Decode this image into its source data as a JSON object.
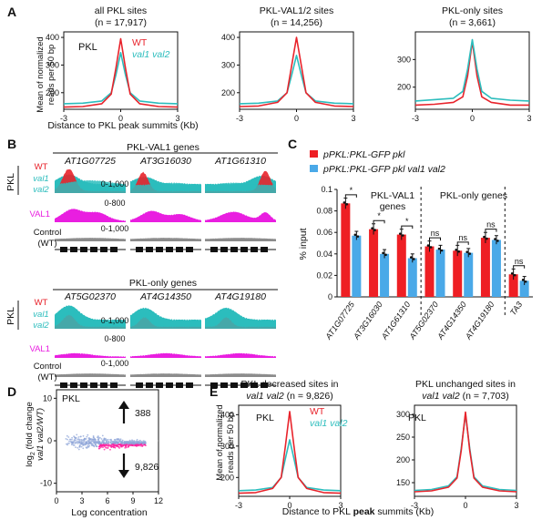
{
  "colors": {
    "wt": "#e8232b",
    "mut": "#2cbdbd",
    "val1": "#e91ee0",
    "ctrl": "#8c8c8c",
    "bar_red": "#ee1f24",
    "bar_blue": "#4aa9e8"
  },
  "panels": {
    "A": {
      "letter": "A",
      "xlabel": "Distance to PKL peak summits (Kb)",
      "ylabel_1": "Mean of normalized",
      "ylabel_2": "reads per 50 bp",
      "legend": {
        "protein": "PKL",
        "wt": "WT",
        "mut": "val1 val2"
      }
    },
    "B": {
      "letter": "B",
      "section1": "PKL-VAL1 genes",
      "section2": "PKL-only genes",
      "genes1": [
        "AT1G07725",
        "AT3G16030",
        "AT1G61310"
      ],
      "genes2": [
        "AT5G02370",
        "AT4G14350",
        "AT4G19180"
      ],
      "track_pkl": "PKL",
      "track_wt": "WT",
      "track_val1": "val1",
      "track_val2": "val2",
      "track_val1_prot": "VAL1",
      "track_control": "Control",
      "track_control_wt": "(WT)",
      "range_pkl": "0-1,000",
      "range_val1": "0-800",
      "range_ctrl": "0-1,000"
    },
    "C": {
      "letter": "C",
      "legend1": "pPKL:PKL-GFP pkl",
      "legend2": "pPKL:PKL-GFP pkl val1 val2",
      "group1": "PKL-VAL1",
      "group1b": "genes",
      "group2": "PKL-only genes",
      "ylabel": "% input",
      "sig": [
        "*",
        "*",
        "*",
        "ns",
        "ns",
        "ns",
        "ns"
      ]
    },
    "D": {
      "letter": "D",
      "protein": "PKL",
      "ylabel_1": "log",
      "ylabel_sub": "2",
      "ylabel_2": " (fold change",
      "ylabel_3": "val1 val2/WT)",
      "xlabel": "Log concentration",
      "up": "388",
      "down": "9,826"
    },
    "E": {
      "letter": "E",
      "xlabel_1": "Distance to PKL ",
      "xlabel_2": "peak",
      "xlabel_3": " summits (Kb)",
      "ylabel_1": "Mean of normalized",
      "ylabel_2": "reads per 50 bp",
      "protein": "PKL",
      "legend": {
        "wt": "WT",
        "mut": "val1 val2"
      }
    }
  },
  "chart_data": [
    {
      "type": "line",
      "panel": "A1",
      "title_1": "all PKL sites",
      "title_2": "(n = 17,917)",
      "x": [
        -3,
        -2,
        -1,
        -0.5,
        -0.25,
        0,
        0.25,
        0.5,
        1,
        2,
        3
      ],
      "xlim": [
        -3,
        3
      ],
      "ylim": [
        140,
        420
      ],
      "xticks": [
        -3,
        0,
        3
      ],
      "yticks": [
        200,
        300,
        400
      ],
      "series": [
        {
          "name": "WT",
          "values": [
            148,
            150,
            160,
            195,
            290,
            395,
            290,
            195,
            160,
            150,
            148
          ]
        },
        {
          "name": "val1 val2",
          "values": [
            160,
            162,
            170,
            200,
            265,
            345,
            265,
            200,
            170,
            162,
            160
          ]
        }
      ]
    },
    {
      "type": "line",
      "panel": "A2",
      "title_1": "PKL-VAL1/2 sites",
      "title_2": "(n = 14,256)",
      "x": [
        -3,
        -2,
        -1,
        -0.5,
        -0.25,
        0,
        0.25,
        0.5,
        1,
        2,
        3
      ],
      "xlim": [
        -3,
        3
      ],
      "ylim": [
        140,
        420
      ],
      "xticks": [
        -3,
        0,
        3
      ],
      "yticks": [
        200,
        300,
        400
      ],
      "series": [
        {
          "name": "WT",
          "values": [
            150,
            152,
            165,
            200,
            300,
            400,
            300,
            200,
            165,
            152,
            150
          ]
        },
        {
          "name": "val1 val2",
          "values": [
            160,
            162,
            170,
            200,
            265,
            335,
            265,
            200,
            170,
            162,
            160
          ]
        }
      ]
    },
    {
      "type": "line",
      "panel": "A3",
      "title_1": "PKL-only sites",
      "title_2": "(n = 3,661)",
      "x": [
        -3,
        -2,
        -1,
        -0.5,
        -0.25,
        0,
        0.25,
        0.5,
        1,
        2,
        3
      ],
      "xlim": [
        -3,
        3
      ],
      "ylim": [
        120,
        400
      ],
      "xticks": [
        -3,
        0,
        3
      ],
      "yticks": [
        200,
        300
      ],
      "series": [
        {
          "name": "WT",
          "values": [
            135,
            138,
            145,
            165,
            240,
            365,
            240,
            165,
            145,
            135,
            135
          ]
        },
        {
          "name": "val1 val2",
          "values": [
            150,
            155,
            160,
            185,
            265,
            372,
            265,
            185,
            160,
            153,
            150
          ]
        }
      ]
    },
    {
      "type": "bar",
      "panel": "C",
      "categories": [
        "AT1G07725",
        "AT3G16030",
        "AT1G61310",
        "AT5G02370",
        "AT4G14350",
        "AT4G19180",
        "TA3"
      ],
      "series": [
        {
          "name": "pPKL:PKL-GFP pkl",
          "values": [
            0.087,
            0.063,
            0.058,
            0.047,
            0.043,
            0.055,
            0.021
          ]
        },
        {
          "name": "pPKL:PKL-GFP pkl val1 val2",
          "values": [
            0.057,
            0.04,
            0.036,
            0.044,
            0.041,
            0.053,
            0.015
          ]
        }
      ],
      "ylim": [
        0,
        0.1
      ],
      "yticks": [
        0,
        0.02,
        0.04,
        0.06,
        0.08,
        0.1
      ],
      "ylabel": "% input"
    },
    {
      "type": "scatter",
      "panel": "D",
      "xlim": [
        0,
        12
      ],
      "ylim": [
        -12,
        12
      ],
      "xticks": [
        0,
        3,
        6,
        9,
        12
      ],
      "yticks": [
        -10,
        0,
        10
      ]
    },
    {
      "type": "line",
      "panel": "E1",
      "title_1": "PKL decreased sites in",
      "title_2": "val1 val2",
      "title_3": " (n = 9,826)",
      "x": [
        -3,
        -2,
        -1,
        -0.5,
        -0.25,
        0,
        0.25,
        0.5,
        1,
        2,
        3
      ],
      "xlim": [
        -3,
        3
      ],
      "ylim": [
        140,
        430
      ],
      "xticks": [
        -3,
        0,
        3
      ],
      "yticks": [
        200,
        300,
        400
      ],
      "series": [
        {
          "name": "WT",
          "values": [
            150,
            152,
            165,
            200,
            300,
            410,
            300,
            200,
            165,
            152,
            150
          ]
        },
        {
          "name": "val1 val2",
          "values": [
            158,
            160,
            168,
            200,
            260,
            320,
            260,
            200,
            168,
            160,
            158
          ]
        }
      ]
    },
    {
      "type": "line",
      "panel": "E2",
      "title_1": "PKL unchanged sites in",
      "title_2": "val1 val2",
      "title_3": " (n = 7,703)",
      "x": [
        -3,
        -2,
        -1,
        -0.5,
        -0.25,
        0,
        0.25,
        0.5,
        1,
        2,
        3
      ],
      "xlim": [
        -3,
        3
      ],
      "ylim": [
        120,
        320
      ],
      "xticks": [
        -3,
        0,
        3
      ],
      "yticks": [
        150,
        200,
        250,
        300
      ],
      "series": [
        {
          "name": "WT",
          "values": [
            130,
            132,
            140,
            160,
            220,
            305,
            220,
            160,
            140,
            132,
            130
          ]
        },
        {
          "name": "val1 val2",
          "values": [
            133,
            135,
            143,
            163,
            225,
            300,
            225,
            163,
            143,
            135,
            133
          ]
        }
      ]
    }
  ]
}
